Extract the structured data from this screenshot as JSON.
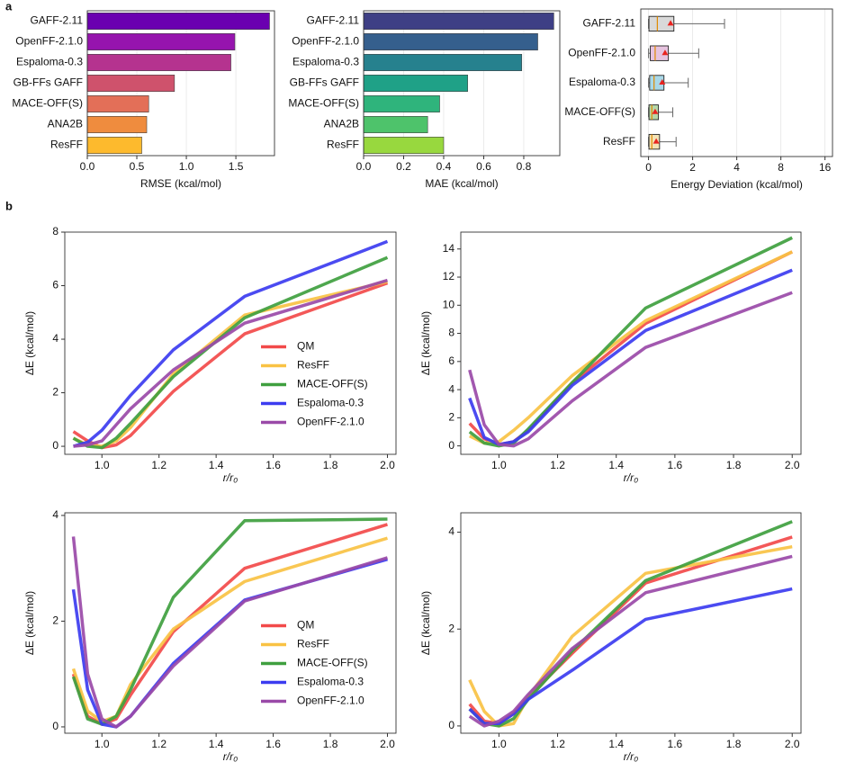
{
  "panels": [
    "a",
    "b"
  ],
  "chart_data": [
    {
      "type": "hbar",
      "x_label": "RMSE (kcal/mol)",
      "categories": [
        "GAFF-2.11",
        "OpenFF-2.1.0",
        "Espaloma-0.3",
        "GB-FFs GAFF",
        "MACE-OFF(S)",
        "ANA2B",
        "ResFF"
      ],
      "values": [
        1.84,
        1.49,
        1.45,
        0.88,
        0.62,
        0.6,
        0.55
      ],
      "colors": [
        "#6a00b0",
        "#9614ae",
        "#b5338f",
        "#cf526c",
        "#e36f58",
        "#ef8c3e",
        "#fdba2d"
      ],
      "xlim": [
        0,
        1.89
      ],
      "xticks": [
        {
          "value": 0,
          "label": "0.0"
        },
        0.5,
        {
          "value": 1,
          "label": "1.0"
        },
        1.5
      ],
      "grid": true
    },
    {
      "type": "hbar",
      "x_label": "MAE (kcal/mol)",
      "categories": [
        "GAFF-2.11",
        "OpenFF-2.1.0",
        "Espaloma-0.3",
        "GB-FFs GAFF",
        "MACE-OFF(S)",
        "ANA2B",
        "ResFF"
      ],
      "values": [
        0.95,
        0.87,
        0.79,
        0.52,
        0.38,
        0.32,
        0.4
      ],
      "colors": [
        "#3e3f85",
        "#355f8d",
        "#26818e",
        "#1fa187",
        "#2fb47c",
        "#4ec36b",
        "#98d83e"
      ],
      "xlim": [
        0,
        0.98
      ],
      "xticks": [
        {
          "value": 0,
          "label": "0.0"
        },
        0.2,
        0.4,
        0.6,
        0.8
      ],
      "grid": true
    },
    {
      "type": "box",
      "x_label": "Energy Deviation (kcal/mol)",
      "xscale": "symlog",
      "linthresh": 2,
      "categories": [
        "GAFF-2.11",
        "OpenFF-2.1.0",
        "Espaloma-0.3",
        "MACE-OFF(S)",
        "ResFF"
      ],
      "boxes": [
        {
          "low": 0,
          "q1": 0.02,
          "median": 0.4,
          "q3": 1.15,
          "high": 3.3,
          "mean": 1.0
        },
        {
          "low": 0,
          "q1": 0.08,
          "median": 0.3,
          "q3": 0.9,
          "high": 2.2,
          "mean": 0.75
        },
        {
          "low": 0,
          "q1": 0.05,
          "median": 0.25,
          "q3": 0.7,
          "high": 1.8,
          "mean": 0.62
        },
        {
          "low": 0,
          "q1": 0.02,
          "median": 0.15,
          "q3": 0.45,
          "high": 1.1,
          "mean": 0.3
        },
        {
          "low": 0,
          "q1": 0.02,
          "median": 0.15,
          "q3": 0.5,
          "high": 1.25,
          "mean": 0.35
        }
      ],
      "colors": [
        "#d9d9d9",
        "#e6c3df",
        "#a9d8e8",
        "#b6d7a8",
        "#f4e3b5"
      ],
      "mean_color": "#e8231f",
      "xlim": [
        -0.35,
        18
      ],
      "xticks": [
        0,
        2,
        4,
        8,
        16
      ],
      "grid": true
    },
    {
      "type": "line",
      "x_label": "r/r₀",
      "y_label": "ΔE (kcal/mol)",
      "legend": "lower right",
      "x": [
        0.9,
        0.95,
        1.0,
        1.05,
        1.1,
        1.25,
        1.5,
        2.0
      ],
      "series": [
        {
          "name": "QM",
          "color": "#f24a4a",
          "values": [
            0.55,
            0.2,
            -0.05,
            0.05,
            0.4,
            2.05,
            4.2,
            6.1
          ]
        },
        {
          "name": "ResFF",
          "color": "#f9c244",
          "values": [
            0.3,
            0.05,
            0.0,
            0.2,
            0.7,
            2.7,
            4.9,
            6.15
          ]
        },
        {
          "name": "MACE-OFF(S)",
          "color": "#3f9f3f",
          "values": [
            0.3,
            0.0,
            -0.05,
            0.3,
            0.85,
            2.6,
            4.8,
            7.05
          ]
        },
        {
          "name": "Espaloma-0.3",
          "color": "#3c3cf0",
          "values": [
            0.0,
            0.15,
            0.6,
            1.25,
            1.9,
            3.6,
            5.6,
            7.65
          ]
        },
        {
          "name": "OpenFF-2.1.0",
          "color": "#9a4aa8",
          "values": [
            0.0,
            0.05,
            0.2,
            0.8,
            1.4,
            2.85,
            4.6,
            6.2
          ]
        }
      ],
      "xlim": [
        0.87,
        2.03
      ],
      "ylim": [
        -0.3,
        8
      ],
      "xticks": [
        {
          "value": 1,
          "label": "1.0"
        },
        1.2,
        1.4,
        1.6,
        1.8,
        {
          "value": 2,
          "label": "2.0"
        }
      ],
      "yticks": [
        0,
        2,
        4,
        6,
        8
      ]
    },
    {
      "type": "line",
      "x_label": "r/r₀",
      "y_label": "ΔE (kcal/mol)",
      "legend": "none",
      "x": [
        0.9,
        0.95,
        1.0,
        1.05,
        1.1,
        1.25,
        1.5,
        2.0
      ],
      "series": [
        {
          "name": "QM",
          "color": "#f24a4a",
          "values": [
            1.6,
            0.5,
            0.1,
            0.3,
            1.1,
            4.5,
            8.7,
            13.8
          ]
        },
        {
          "name": "ResFF",
          "color": "#f9c244",
          "values": [
            0.7,
            0.2,
            0.3,
            1.1,
            2.0,
            5.0,
            8.9,
            13.8
          ]
        },
        {
          "name": "MACE-OFF(S)",
          "color": "#3f9f3f",
          "values": [
            1.0,
            0.2,
            0.0,
            0.2,
            1.2,
            4.5,
            9.8,
            14.8
          ]
        },
        {
          "name": "Espaloma-0.3",
          "color": "#3c3cf0",
          "values": [
            3.4,
            0.6,
            0.1,
            0.3,
            1.0,
            4.3,
            8.2,
            12.5
          ]
        },
        {
          "name": "OpenFF-2.1.0",
          "color": "#9a4aa8",
          "values": [
            5.4,
            1.5,
            0.1,
            0.0,
            0.5,
            3.2,
            7.0,
            10.9
          ]
        }
      ],
      "xlim": [
        0.87,
        2.03
      ],
      "ylim": [
        -0.6,
        15.2
      ],
      "xticks": [
        {
          "value": 1,
          "label": "1.0"
        },
        1.2,
        1.4,
        1.6,
        1.8,
        {
          "value": 2,
          "label": "2.0"
        }
      ],
      "yticks": [
        0,
        2,
        4,
        6,
        8,
        10,
        12,
        14
      ]
    },
    {
      "type": "line",
      "x_label": "r/r₀",
      "y_label": "ΔE (kcal/mol)",
      "legend": "lower right",
      "x": [
        0.9,
        0.95,
        1.0,
        1.05,
        1.1,
        1.25,
        1.5,
        2.0
      ],
      "series": [
        {
          "name": "QM",
          "color": "#f24a4a",
          "values": [
            1.0,
            0.2,
            0.05,
            0.15,
            0.6,
            1.8,
            3.0,
            3.83
          ]
        },
        {
          "name": "ResFF",
          "color": "#f9c244",
          "values": [
            1.1,
            0.3,
            0.1,
            0.2,
            0.8,
            1.85,
            2.75,
            3.57
          ]
        },
        {
          "name": "MACE-OFF(S)",
          "color": "#3f9f3f",
          "values": [
            0.95,
            0.15,
            0.05,
            0.2,
            0.7,
            2.45,
            3.9,
            3.93
          ]
        },
        {
          "name": "Espaloma-0.3",
          "color": "#3c3cf0",
          "values": [
            2.6,
            0.7,
            0.05,
            0.0,
            0.2,
            1.2,
            2.4,
            3.17
          ]
        },
        {
          "name": "OpenFF-2.1.0",
          "color": "#9a4aa8",
          "values": [
            3.6,
            1.0,
            0.15,
            0.0,
            0.2,
            1.15,
            2.38,
            3.2
          ]
        }
      ],
      "xlim": [
        0.87,
        2.03
      ],
      "ylim": [
        -0.12,
        4.05
      ],
      "xticks": [
        {
          "value": 1,
          "label": "1.0"
        },
        1.2,
        1.4,
        1.6,
        1.8,
        {
          "value": 2,
          "label": "2.0"
        }
      ],
      "yticks": [
        0,
        2,
        4
      ]
    },
    {
      "type": "line",
      "x_label": "r/r₀",
      "y_label": "ΔE (kcal/mol)",
      "legend": "none",
      "x": [
        0.9,
        0.95,
        1.0,
        1.05,
        1.1,
        1.25,
        1.5,
        2.0
      ],
      "series": [
        {
          "name": "QM",
          "color": "#f24a4a",
          "values": [
            0.45,
            0.1,
            0.05,
            0.25,
            0.6,
            1.5,
            2.95,
            3.9
          ]
        },
        {
          "name": "ResFF",
          "color": "#f9c244",
          "values": [
            0.95,
            0.3,
            0.0,
            0.05,
            0.6,
            1.85,
            3.15,
            3.7
          ]
        },
        {
          "name": "MACE-OFF(S)",
          "color": "#3f9f3f",
          "values": [
            0.35,
            0.05,
            0.0,
            0.15,
            0.55,
            1.55,
            3.0,
            4.22
          ]
        },
        {
          "name": "Espaloma-0.3",
          "color": "#3c3cf0",
          "values": [
            0.35,
            0.05,
            0.05,
            0.25,
            0.55,
            1.15,
            2.2,
            2.83
          ]
        },
        {
          "name": "OpenFF-2.1.0",
          "color": "#9a4aa8",
          "values": [
            0.2,
            0.0,
            0.1,
            0.3,
            0.65,
            1.6,
            2.75,
            3.5
          ]
        }
      ],
      "xlim": [
        0.87,
        2.03
      ],
      "ylim": [
        -0.15,
        4.4
      ],
      "xticks": [
        {
          "value": 1,
          "label": "1.0"
        },
        1.2,
        1.4,
        1.6,
        1.8,
        {
          "value": 2,
          "label": "2.0"
        }
      ],
      "yticks": [
        0,
        2,
        4
      ]
    }
  ]
}
